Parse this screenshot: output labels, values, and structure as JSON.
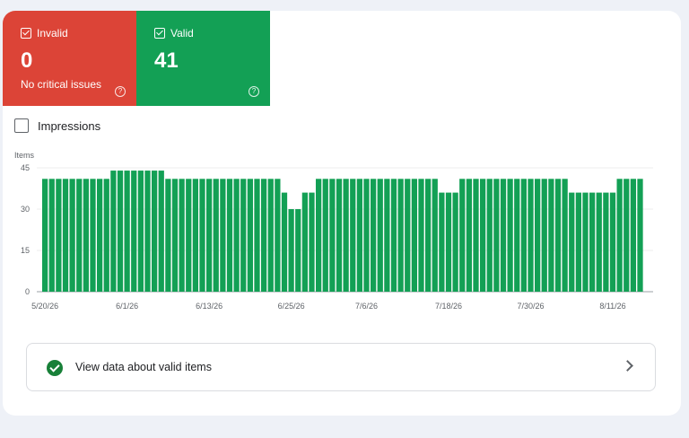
{
  "tiles": {
    "invalid": {
      "label": "Invalid",
      "count": "0",
      "subtitle": "No critical issues",
      "color": "#dc4437",
      "help_icon": "help-circle-icon"
    },
    "valid": {
      "label": "Valid",
      "count": "41",
      "color": "#13a055",
      "help_icon": "help-circle-icon"
    }
  },
  "impressions": {
    "label": "Impressions",
    "checked": false
  },
  "chart_data": {
    "type": "bar",
    "ylabel": "Items",
    "ylim": [
      0,
      45
    ],
    "yticks": [
      0,
      15,
      30,
      45
    ],
    "xtick_labels": [
      "5/20/26",
      "6/1/26",
      "6/13/26",
      "6/25/26",
      "7/6/26",
      "7/18/26",
      "7/30/26",
      "8/11/26"
    ],
    "xtick_indices": [
      0,
      12,
      24,
      36,
      47,
      59,
      71,
      83
    ],
    "bar_color": "#13a055",
    "grid": true,
    "values": [
      41,
      41,
      41,
      41,
      41,
      41,
      41,
      41,
      41,
      41,
      44,
      44,
      44,
      44,
      44,
      44,
      44,
      44,
      41,
      41,
      41,
      41,
      41,
      41,
      41,
      41,
      41,
      41,
      41,
      41,
      41,
      41,
      41,
      41,
      41,
      36,
      30,
      30,
      36,
      36,
      41,
      41,
      41,
      41,
      41,
      41,
      41,
      41,
      41,
      41,
      41,
      41,
      41,
      41,
      41,
      41,
      41,
      41,
      36,
      36,
      36,
      41,
      41,
      41,
      41,
      41,
      41,
      41,
      41,
      41,
      41,
      41,
      41,
      41,
      41,
      41,
      41,
      36,
      36,
      36,
      36,
      36,
      36,
      36,
      41,
      41,
      41,
      41
    ]
  },
  "cta": {
    "label": "View data about valid items",
    "status_icon": "check-circle-icon",
    "chevron_icon": "chevron-right-icon"
  }
}
